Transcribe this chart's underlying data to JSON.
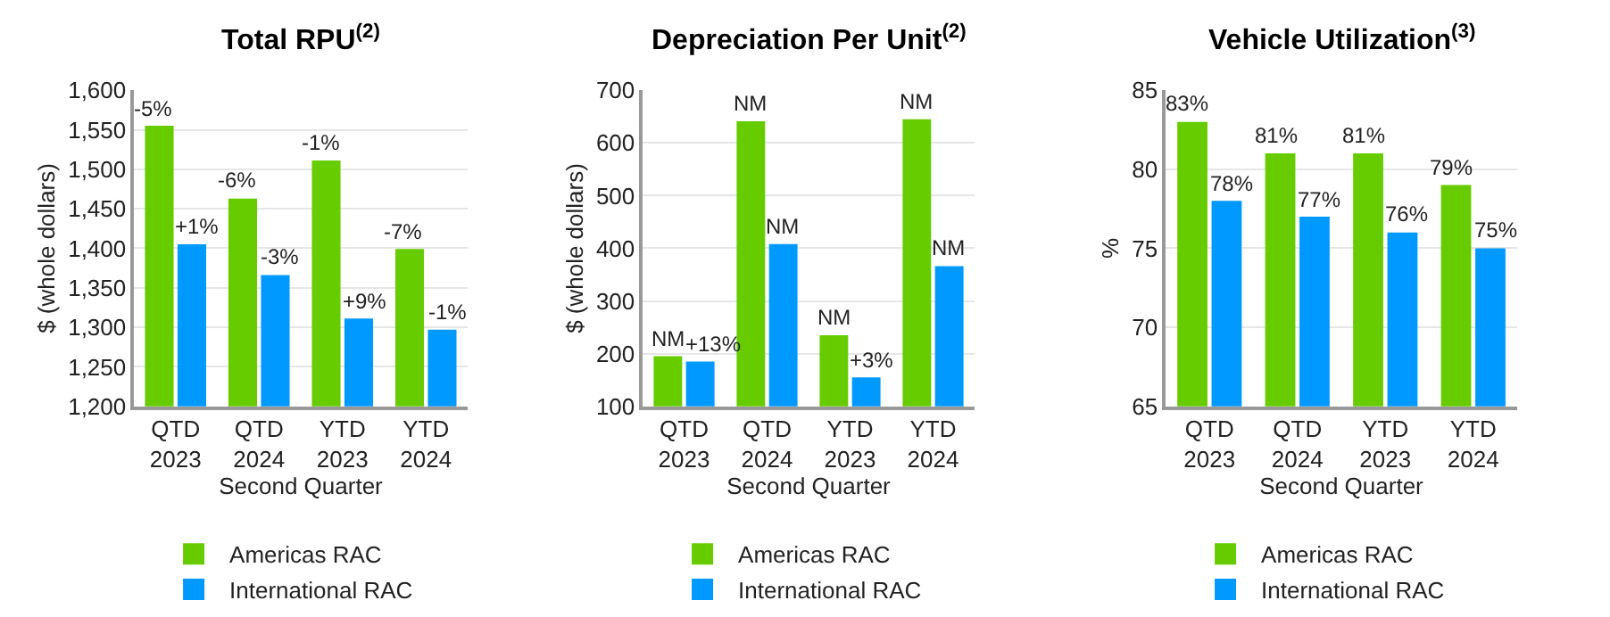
{
  "chart_data": [
    {
      "type": "bar",
      "title": "Total RPU$^{(2)}$",
      "xlabel": "Second Quarter",
      "ylabel": "$ (whole dollars)",
      "categories": [
        "QTD\n2023",
        "QTD\n2024",
        "YTD\n2023",
        "YTD\n2024"
      ],
      "ylim": [
        1200,
        1600
      ],
      "yticks": [
        {
          "value": 1200,
          "label": "1,200"
        },
        {
          "value": 1250,
          "label": "1,250"
        },
        {
          "value": 1300,
          "label": "1,300"
        },
        {
          "value": 1350,
          "label": "1,350"
        },
        {
          "value": 1400,
          "label": "1,400"
        },
        {
          "value": 1450,
          "label": "1,450"
        },
        {
          "value": 1500,
          "label": "1,500"
        },
        {
          "value": 1550,
          "label": "1,550"
        },
        {
          "value": 1600,
          "label": "1,600"
        }
      ],
      "grid": "y",
      "legend": "bottom",
      "series": [
        {
          "name": "Americas RAC",
          "color": "#66cc00",
          "values": [
            1555,
            1463,
            1511,
            1399
          ]
        },
        {
          "name": "International RAC",
          "color": "#0099ff",
          "values": [
            1405,
            1366,
            1311,
            1297
          ]
        }
      ],
      "annotations": [
        {
          "text": "-5%",
          "x": "QTD\n2023",
          "y": 1555
        },
        {
          "text": "+1%",
          "x": "QTD\n2023",
          "y": 1405
        },
        {
          "text": "-6%",
          "x": "QTD\n2024",
          "y": 1463
        },
        {
          "text": "-3%",
          "x": "QTD\n2024",
          "y": 1366
        },
        {
          "text": "-1%",
          "x": "YTD\n2023",
          "y": 1511
        },
        {
          "text": "+9%",
          "x": "YTD\n2023",
          "y": 1311
        },
        {
          "text": "-7%",
          "x": "YTD\n2024",
          "y": 1399
        },
        {
          "text": "-1%",
          "x": "YTD\n2024",
          "y": 1297
        }
      ]
    },
    {
      "type": "bar",
      "title": "Depreciation Per Unit$^{(2)}$",
      "xlabel": "Second Quarter",
      "ylabel": "$ (whole dollars)",
      "categories": [
        "QTD\n2023",
        "QTD\n2024",
        "YTD\n2023",
        "YTD\n2024"
      ],
      "ylim": [
        100,
        700
      ],
      "yticks": [
        100,
        200,
        300,
        400,
        500,
        600,
        700
      ],
      "grid": "y",
      "legend": "bottom",
      "series": [
        {
          "name": "Americas RAC",
          "color": "#66cc00",
          "values": [
            195,
            641,
            235,
            645
          ]
        },
        {
          "name": "International RAC",
          "color": "#0099ff",
          "values": [
            185,
            408,
            155,
            366
          ]
        }
      ],
      "annotations": [
        {
          "text": "NM",
          "x": "QTD\n2023",
          "y": 195
        },
        {
          "text": "+13%",
          "x": "QTD\n2023",
          "y": 185
        },
        {
          "text": "NM",
          "x": "QTD\n2024",
          "y": 641
        },
        {
          "text": "NM",
          "x": "QTD\n2024",
          "y": 408
        },
        {
          "text": "NM",
          "x": "YTD\n2023",
          "y": 235
        },
        {
          "text": "+3%",
          "x": "YTD\n2023",
          "y": 155
        },
        {
          "text": "NM",
          "x": "YTD\n2024",
          "y": 645
        },
        {
          "text": "NM",
          "x": "YTD\n2024",
          "y": 366
        }
      ]
    },
    {
      "type": "bar",
      "title": "Vehicle Utilization$^{(3)}$",
      "xlabel": "Second Quarter",
      "ylabel": "%",
      "categories": [
        "QTD\n2023",
        "QTD\n2024",
        "YTD\n2023",
        "YTD\n2024"
      ],
      "ylim": [
        65,
        85
      ],
      "yticks": [
        65,
        70,
        75,
        80,
        85
      ],
      "grid": "y",
      "legend": "bottom",
      "data_labels": true,
      "series": [
        {
          "name": "Americas RAC",
          "color": "#66cc00",
          "values": [
            83,
            81,
            81,
            79
          ],
          "value_labels": [
            "83%",
            "81%",
            "81%",
            "79%"
          ]
        },
        {
          "name": "International RAC",
          "color": "#0099ff",
          "values": [
            78,
            77,
            76,
            75
          ],
          "value_labels": [
            "78%",
            "77%",
            "76%",
            "75%"
          ]
        }
      ]
    }
  ]
}
